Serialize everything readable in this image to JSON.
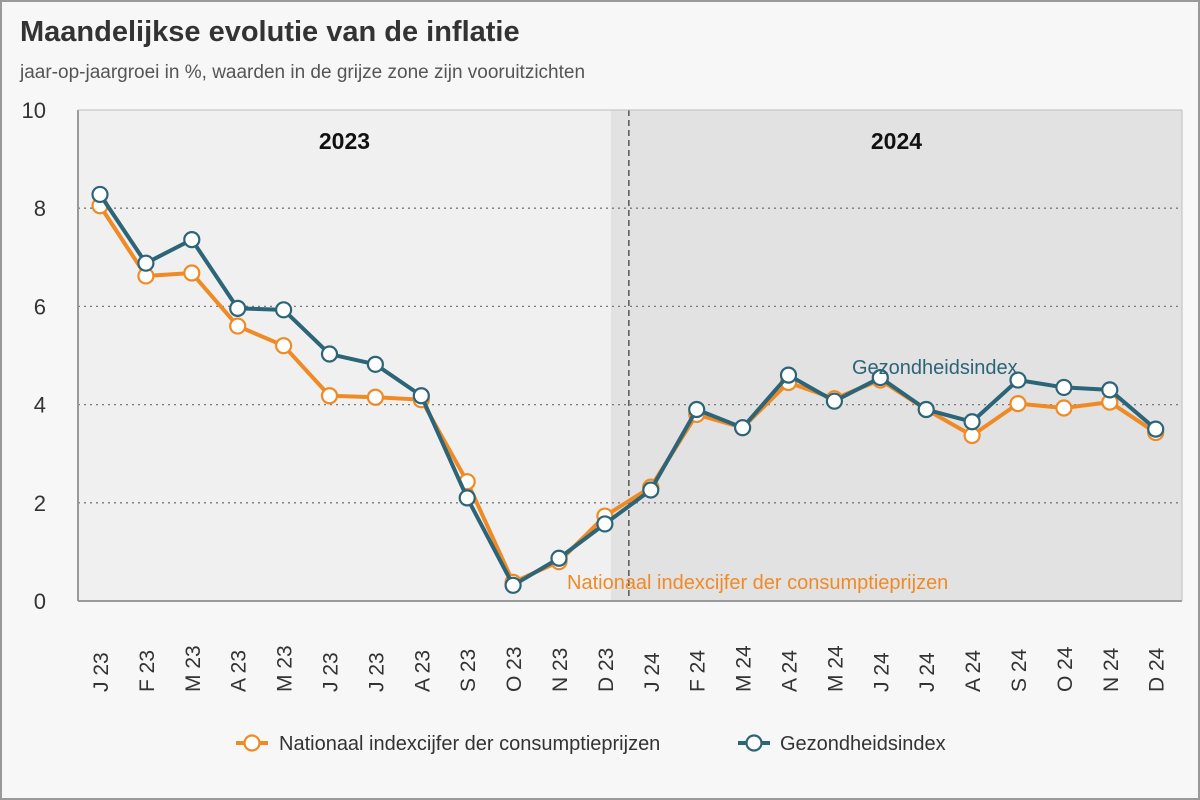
{
  "title": "Maandelijkse evolutie van de inflatie",
  "subtitle": "jaar-op-jaargroei in %, waarden in de grijze zone zijn vooruitzichten",
  "colors": {
    "orange": "#f08a24",
    "teal": "#2c6478",
    "zone_2023": "#f0f0f0",
    "zone_2024": "#e2e2e2",
    "gridline": "#7a7a7a"
  },
  "chart_data": {
    "type": "line",
    "categories": [
      "J 23",
      "F 23",
      "M 23",
      "A 23",
      "M 23",
      "J 23",
      "J 23",
      "A 23",
      "S 23",
      "O 23",
      "N 23",
      "D 23",
      "J 24",
      "F 24",
      "M 24",
      "A 24",
      "M 24",
      "J 24",
      "J 24",
      "A 24",
      "S 24",
      "O 24",
      "N 24",
      "D 24"
    ],
    "ylim": [
      0,
      10
    ],
    "yticks": [
      0,
      2,
      4,
      6,
      8,
      10
    ],
    "grid": true,
    "zones": [
      {
        "label": "2023",
        "from": 0,
        "to": 11
      },
      {
        "label": "2024",
        "from": 11,
        "to": 23
      }
    ],
    "forecast_from_index": 11,
    "series": [
      {
        "name": "Nationaal indexcijfer der consumptieprijzen",
        "color": "#f08a24",
        "values": [
          8.05,
          6.62,
          6.68,
          5.6,
          5.2,
          4.18,
          4.15,
          4.1,
          2.43,
          0.38,
          0.8,
          1.73,
          2.32,
          3.8,
          3.53,
          4.45,
          4.12,
          4.5,
          3.9,
          3.37,
          4.02,
          3.93,
          4.05,
          3.43
        ]
      },
      {
        "name": "Gezondheidsindex",
        "color": "#2c6478",
        "values": [
          8.28,
          6.88,
          7.36,
          5.96,
          5.93,
          5.03,
          4.82,
          4.18,
          2.1,
          0.32,
          0.87,
          1.57,
          2.26,
          3.9,
          3.53,
          4.6,
          4.07,
          4.55,
          3.9,
          3.65,
          4.5,
          4.35,
          4.3,
          3.5
        ]
      }
    ],
    "annotations": [
      {
        "text": "Gezondheidsindex",
        "series": 1,
        "x": 17,
        "y": 4.75
      },
      {
        "text": "Nationaal indexcijfer der consumptieprijzen",
        "series": 0,
        "x": 15.5,
        "y": 0.38
      }
    ],
    "legend": "bottom"
  }
}
